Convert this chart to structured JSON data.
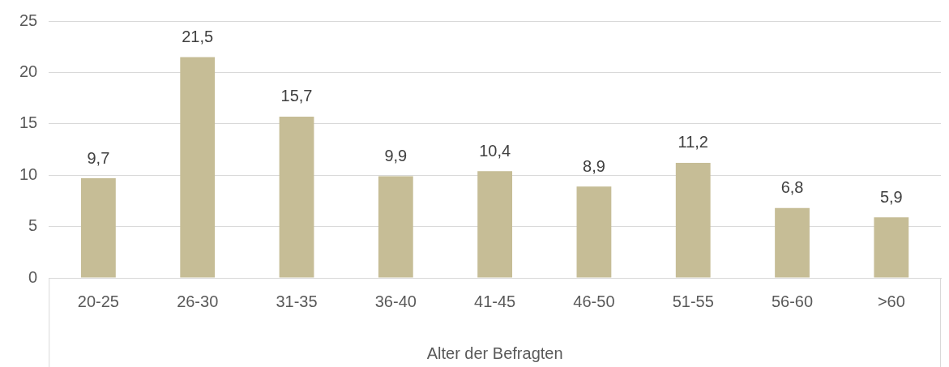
{
  "chart_data": {
    "type": "bar",
    "xlabel": "Alter der Befragten",
    "categories": [
      "20-25",
      "26-30",
      "31-35",
      "36-40",
      "41-45",
      "46-50",
      "51-55",
      "56-60",
      ">60"
    ],
    "values": [
      9.7,
      21.5,
      15.7,
      9.9,
      10.4,
      8.9,
      11.2,
      6.8,
      5.9
    ],
    "value_labels": [
      "9,7",
      "21,5",
      "15,7",
      "9,9",
      "10,4",
      "8,9",
      "11,2",
      "6,8",
      "5,9"
    ],
    "color": "#c6bd96",
    "ylim": [
      0,
      25
    ],
    "yticks": [
      0,
      5,
      10,
      15,
      20,
      25
    ],
    "grid": "y",
    "legend": false
  }
}
